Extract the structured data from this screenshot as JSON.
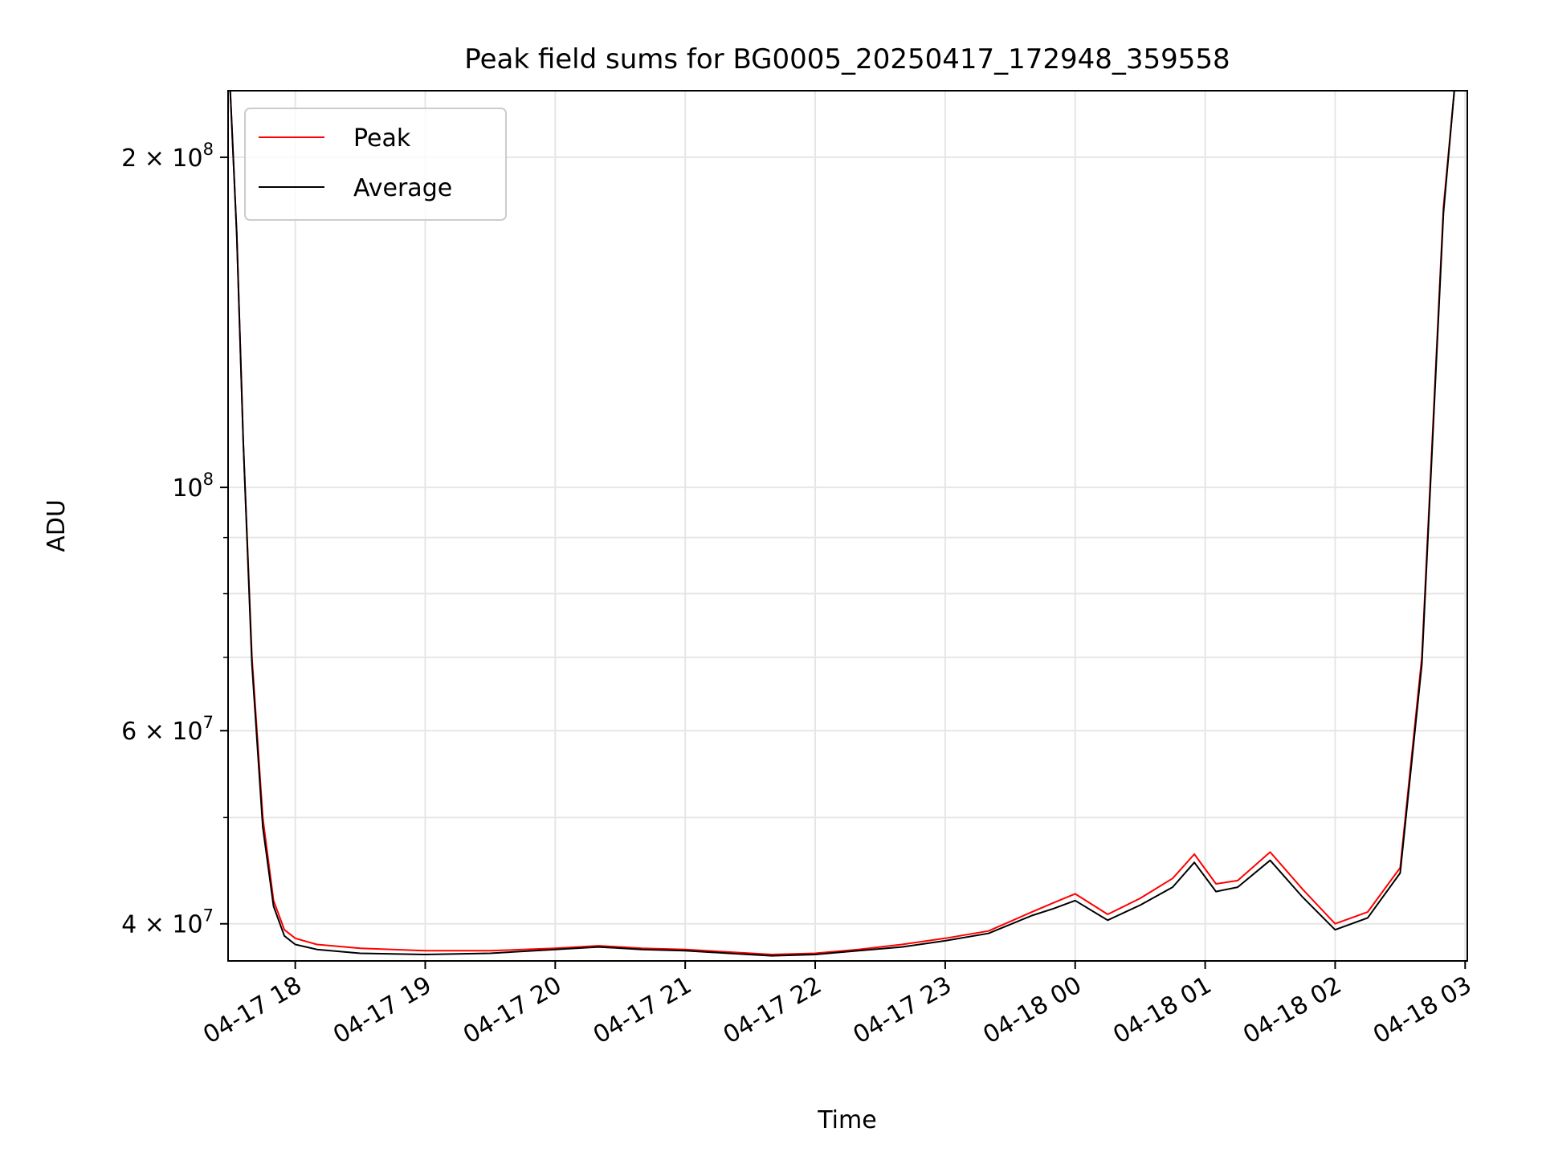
{
  "chart_data": {
    "type": "line",
    "title": "Peak field sums for BG0005_20250417_172948_359558",
    "xlabel": "Time",
    "ylabel": "ADU",
    "y_scale": "log",
    "ylim": [
      37000000,
      230000000
    ],
    "xlim": [
      "2025-04-17 17:29",
      "2025-04-18 03:01"
    ],
    "grid": true,
    "legend_position": "upper-left",
    "x_ticks": [
      {
        "label": "04-17 18",
        "time": "2025-04-17 18:00"
      },
      {
        "label": "04-17 19",
        "time": "2025-04-17 19:00"
      },
      {
        "label": "04-17 20",
        "time": "2025-04-17 20:00"
      },
      {
        "label": "04-17 21",
        "time": "2025-04-17 21:00"
      },
      {
        "label": "04-17 22",
        "time": "2025-04-17 22:00"
      },
      {
        "label": "04-17 23",
        "time": "2025-04-17 23:00"
      },
      {
        "label": "04-18 00",
        "time": "2025-04-18 00:00"
      },
      {
        "label": "04-18 01",
        "time": "2025-04-18 01:00"
      },
      {
        "label": "04-18 02",
        "time": "2025-04-18 02:00"
      },
      {
        "label": "04-18 03",
        "time": "2025-04-18 03:00"
      }
    ],
    "y_ticks": [
      {
        "base": "4 × 10",
        "exp": "7",
        "value": 40000000
      },
      {
        "base": "6 × 10",
        "exp": "7",
        "value": 60000000
      },
      {
        "base": "10",
        "exp": "8",
        "value": 100000000
      },
      {
        "base": "2 × 10",
        "exp": "8",
        "value": 200000000
      }
    ],
    "y_minor_ticks": [
      50000000,
      70000000,
      80000000,
      90000000
    ],
    "series": [
      {
        "name": "Peak",
        "color": "#ff0000",
        "points": [
          [
            "2025-04-17 17:30",
            230000000
          ],
          [
            "2025-04-17 17:33",
            170000000
          ],
          [
            "2025-04-17 17:36",
            110000000
          ],
          [
            "2025-04-17 17:40",
            70000000
          ],
          [
            "2025-04-17 17:45",
            50000000
          ],
          [
            "2025-04-17 17:50",
            42000000
          ],
          [
            "2025-04-17 17:55",
            39500000
          ],
          [
            "2025-04-17 18:00",
            38800000
          ],
          [
            "2025-04-17 18:10",
            38300000
          ],
          [
            "2025-04-17 18:30",
            38000000
          ],
          [
            "2025-04-17 19:00",
            37800000
          ],
          [
            "2025-04-17 19:30",
            37800000
          ],
          [
            "2025-04-17 20:00",
            38000000
          ],
          [
            "2025-04-17 20:20",
            38200000
          ],
          [
            "2025-04-17 20:40",
            38000000
          ],
          [
            "2025-04-17 21:00",
            37900000
          ],
          [
            "2025-04-17 21:20",
            37700000
          ],
          [
            "2025-04-17 21:40",
            37500000
          ],
          [
            "2025-04-17 22:00",
            37600000
          ],
          [
            "2025-04-17 22:20",
            37900000
          ],
          [
            "2025-04-17 22:40",
            38300000
          ],
          [
            "2025-04-17 23:00",
            38800000
          ],
          [
            "2025-04-17 23:20",
            39400000
          ],
          [
            "2025-04-17 23:40",
            41000000
          ],
          [
            "2025-04-17 23:50",
            41800000
          ],
          [
            "2025-04-18 00:00",
            42600000
          ],
          [
            "2025-04-18 00:15",
            40800000
          ],
          [
            "2025-04-18 00:30",
            42200000
          ],
          [
            "2025-04-18 00:45",
            44000000
          ],
          [
            "2025-04-18 00:55",
            46300000
          ],
          [
            "2025-04-18 01:05",
            43500000
          ],
          [
            "2025-04-18 01:15",
            43800000
          ],
          [
            "2025-04-18 01:30",
            46500000
          ],
          [
            "2025-04-18 01:45",
            43000000
          ],
          [
            "2025-04-18 02:00",
            40000000
          ],
          [
            "2025-04-18 02:15",
            41000000
          ],
          [
            "2025-04-18 02:30",
            45000000
          ],
          [
            "2025-04-18 02:40",
            70000000
          ],
          [
            "2025-04-18 02:50",
            180000000
          ],
          [
            "2025-04-18 02:55",
            230000000
          ]
        ]
      },
      {
        "name": "Average",
        "color": "#000000",
        "points": [
          [
            "2025-04-17 17:30",
            230000000
          ],
          [
            "2025-04-17 17:33",
            170000000
          ],
          [
            "2025-04-17 17:36",
            110000000
          ],
          [
            "2025-04-17 17:40",
            69000000
          ],
          [
            "2025-04-17 17:45",
            49000000
          ],
          [
            "2025-04-17 17:50",
            41500000
          ],
          [
            "2025-04-17 17:55",
            39000000
          ],
          [
            "2025-04-17 18:00",
            38300000
          ],
          [
            "2025-04-17 18:10",
            37900000
          ],
          [
            "2025-04-17 18:30",
            37600000
          ],
          [
            "2025-04-17 19:00",
            37500000
          ],
          [
            "2025-04-17 19:30",
            37600000
          ],
          [
            "2025-04-17 20:00",
            37900000
          ],
          [
            "2025-04-17 20:20",
            38100000
          ],
          [
            "2025-04-17 20:40",
            37900000
          ],
          [
            "2025-04-17 21:00",
            37800000
          ],
          [
            "2025-04-17 21:20",
            37600000
          ],
          [
            "2025-04-17 21:40",
            37400000
          ],
          [
            "2025-04-17 22:00",
            37500000
          ],
          [
            "2025-04-17 22:20",
            37800000
          ],
          [
            "2025-04-17 22:40",
            38100000
          ],
          [
            "2025-04-17 23:00",
            38600000
          ],
          [
            "2025-04-17 23:20",
            39200000
          ],
          [
            "2025-04-17 23:40",
            40700000
          ],
          [
            "2025-04-17 23:50",
            41300000
          ],
          [
            "2025-04-18 00:00",
            42000000
          ],
          [
            "2025-04-18 00:15",
            40300000
          ],
          [
            "2025-04-18 00:30",
            41600000
          ],
          [
            "2025-04-18 00:45",
            43200000
          ],
          [
            "2025-04-18 00:55",
            45500000
          ],
          [
            "2025-04-18 01:05",
            42800000
          ],
          [
            "2025-04-18 01:15",
            43200000
          ],
          [
            "2025-04-18 01:30",
            45700000
          ],
          [
            "2025-04-18 01:45",
            42300000
          ],
          [
            "2025-04-18 02:00",
            39500000
          ],
          [
            "2025-04-18 02:15",
            40500000
          ],
          [
            "2025-04-18 02:30",
            44500000
          ],
          [
            "2025-04-18 02:40",
            69000000
          ],
          [
            "2025-04-18 02:50",
            178000000
          ],
          [
            "2025-04-18 02:55",
            230000000
          ]
        ]
      }
    ]
  }
}
